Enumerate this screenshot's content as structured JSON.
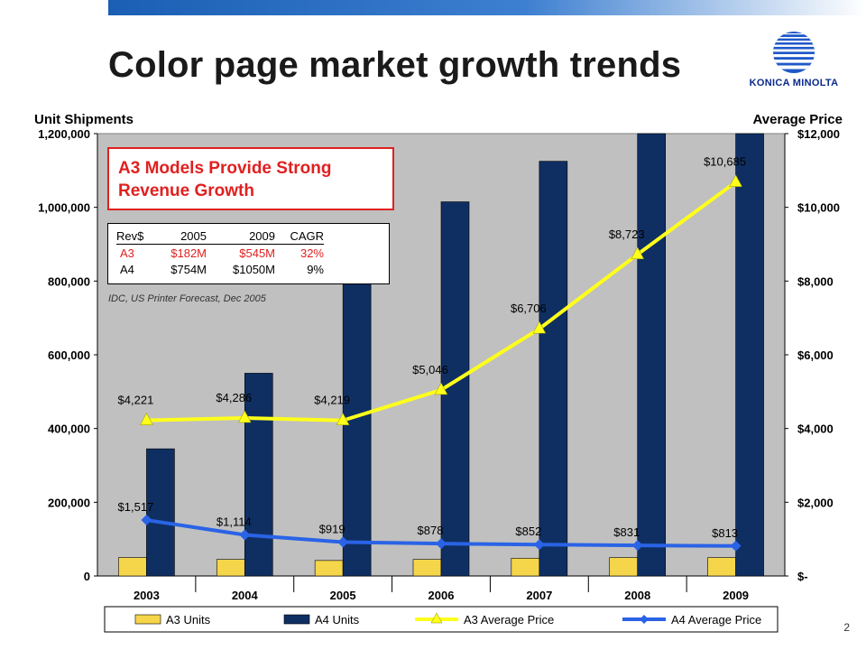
{
  "slide": {
    "title": "Color page market growth trends",
    "page_number": "2",
    "logo_text": "KONICA MINOLTA"
  },
  "callout": {
    "line1": "A3 Models Provide Strong",
    "line2": "Revenue Growth"
  },
  "revenue_table": {
    "headers": [
      "Rev$",
      "2005",
      "2009",
      "CAGR"
    ],
    "rows": [
      [
        "A3",
        "$182M",
        "$545M",
        "32%"
      ],
      [
        "A4",
        "$754M",
        "$1050M",
        "9%"
      ]
    ]
  },
  "source_note": "IDC, US Printer Forecast, Dec 2005",
  "colors": {
    "a3_units": "#f5d54a",
    "a4_units": "#0f2f63",
    "a3_price": "#ffff1a",
    "a4_price": "#2a63e6",
    "plot_bg": "#c0c0c0",
    "callout": "#e02020"
  },
  "chart_data": {
    "type": "bar",
    "categories": [
      "2003",
      "2004",
      "2005",
      "2006",
      "2007",
      "2008",
      "2009"
    ],
    "left_axis": {
      "label": "Unit Shipments",
      "range": [
        0,
        1200000
      ],
      "ticks": [
        "0",
        "200,000",
        "400,000",
        "600,000",
        "800,000",
        "1,000,000",
        "1,200,000"
      ]
    },
    "right_axis": {
      "label": "Average Price",
      "range": [
        0,
        12000
      ],
      "ticks": [
        "$-",
        "$2,000",
        "$4,000",
        "$6,000",
        "$8,000",
        "$10,000",
        "$12,000"
      ]
    },
    "series": [
      {
        "name": "A3 Units",
        "type": "bar",
        "axis": "left",
        "values": [
          50000,
          45000,
          42000,
          45000,
          48000,
          50000,
          50000
        ]
      },
      {
        "name": "A4 Units",
        "type": "bar",
        "axis": "left",
        "values": [
          345000,
          550000,
          800000,
          1015000,
          1125000,
          1200000,
          1200000
        ]
      },
      {
        "name": "A3 Average Price",
        "type": "line",
        "axis": "right",
        "values": [
          4221,
          4286,
          4219,
          5046,
          6706,
          8723,
          10685
        ],
        "labels": [
          "$4,221",
          "$4,286",
          "$4,219",
          "$5,046",
          "$6,706",
          "$8,723",
          "$10,685"
        ]
      },
      {
        "name": "A4 Average Price",
        "type": "line",
        "axis": "right",
        "values": [
          1517,
          1114,
          919,
          878,
          852,
          831,
          813
        ],
        "labels": [
          "$1,517",
          "$1,114",
          "$919",
          "$878",
          "$852",
          "$831",
          "$813"
        ]
      }
    ],
    "grid": false,
    "legend": "bottom"
  }
}
